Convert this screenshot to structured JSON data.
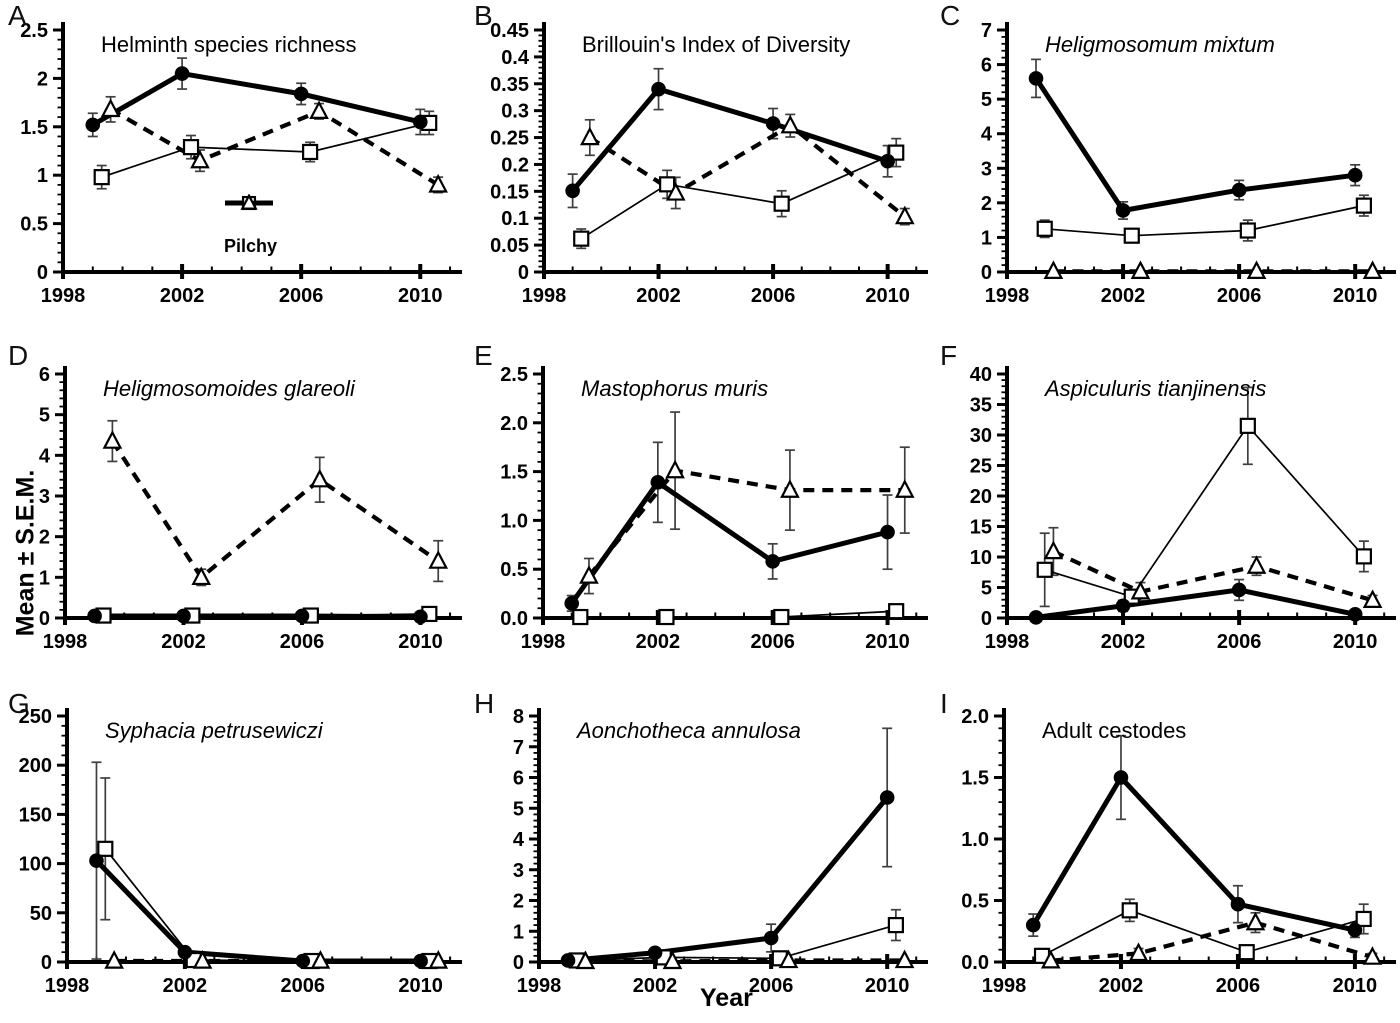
{
  "figure": {
    "xlabel": "Year",
    "ylabel": "Mean ± S.E.M.",
    "x_range": [
      1998,
      2011.2
    ],
    "x_major_ticks": [
      1998,
      2002,
      2006,
      2010
    ],
    "years": [
      1999,
      2002,
      2006,
      2010
    ],
    "colors": {
      "line": "#000000",
      "marker_fill": "#ffffff",
      "error_bar": "#3f3f3f",
      "background": "#ffffff"
    }
  },
  "legend": {
    "entries": [
      {
        "marker": "filled-circle",
        "line": "solid-thick",
        "label": ""
      },
      {
        "marker": "open-square",
        "line": "solid-thin",
        "label": ""
      },
      {
        "marker": "open-triangle",
        "line": "dashed-thick",
        "label": "Pilchy"
      }
    ]
  },
  "chart_data": [
    {
      "panel": "A",
      "type": "line",
      "title": "Helminth species richness",
      "title_italic": false,
      "ylim": 2.5,
      "y_major": 0.5,
      "y_minor": 0.1,
      "y_labels": [
        "0",
        "0.5",
        "1",
        "1.5",
        "2",
        "2.5"
      ],
      "series": [
        {
          "name": "filled-circle",
          "marker": "filled-circle",
          "line": "solid-thick",
          "x_offset": 0,
          "values": [
            1.52,
            2.05,
            1.84,
            1.55
          ],
          "errors": [
            0.12,
            0.16,
            0.11,
            0.13
          ]
        },
        {
          "name": "open-square",
          "marker": "open-square",
          "line": "solid-thin",
          "x_offset": 0.3,
          "values": [
            0.98,
            1.29,
            1.24,
            1.54
          ],
          "errors": [
            0.12,
            0.12,
            0.1,
            0.12
          ]
        },
        {
          "name": "pilchy-triangle",
          "marker": "open-triangle",
          "line": "dashed-thick",
          "x_offset": 0.6,
          "values": [
            1.68,
            1.15,
            1.66,
            0.9
          ],
          "errors": [
            0.13,
            0.11,
            0.08,
            0.08
          ]
        }
      ]
    },
    {
      "panel": "B",
      "type": "line",
      "title": "Brillouin's Index of Diversity",
      "title_italic": false,
      "ylim": 0.45,
      "y_major": 0.05,
      "y_minor": 0.01,
      "y_labels": [
        "0",
        "0.05",
        "0.1",
        "0.15",
        "0.2",
        "0.25",
        "0.3",
        "0.35",
        "0.4",
        "0.45"
      ],
      "series": [
        {
          "name": "filled-circle",
          "marker": "filled-circle",
          "line": "solid-thick",
          "x_offset": 0,
          "values": [
            0.151,
            0.34,
            0.276,
            0.206
          ],
          "errors": [
            0.031,
            0.038,
            0.028,
            0.029
          ]
        },
        {
          "name": "open-square",
          "marker": "open-square",
          "line": "solid-thin",
          "x_offset": 0.3,
          "values": [
            0.062,
            0.163,
            0.127,
            0.222
          ],
          "errors": [
            0.018,
            0.026,
            0.024,
            0.026
          ]
        },
        {
          "name": "pilchy-triangle",
          "marker": "open-triangle",
          "line": "dashed-thick",
          "x_offset": 0.6,
          "values": [
            0.25,
            0.147,
            0.272,
            0.103
          ],
          "errors": [
            0.033,
            0.029,
            0.021,
            0.015
          ]
        }
      ]
    },
    {
      "panel": "C",
      "type": "line",
      "title": "Heligmosomum mixtum",
      "title_italic": true,
      "ylim": 7,
      "y_major": 1,
      "y_minor": 0.2,
      "y_labels": [
        "0",
        "1",
        "2",
        "3",
        "4",
        "5",
        "6",
        "7"
      ],
      "series": [
        {
          "name": "filled-circle",
          "marker": "filled-circle",
          "line": "solid-thick",
          "x_offset": 0,
          "values": [
            5.6,
            1.78,
            2.37,
            2.8
          ],
          "errors": [
            0.55,
            0.25,
            0.28,
            0.3
          ]
        },
        {
          "name": "open-square",
          "marker": "open-square",
          "line": "solid-thin",
          "x_offset": 0.3,
          "values": [
            1.25,
            1.05,
            1.2,
            1.92
          ],
          "errors": [
            0.25,
            0.2,
            0.3,
            0.3
          ]
        },
        {
          "name": "pilchy-triangle",
          "marker": "open-triangle",
          "line": "dashed-thick",
          "x_offset": 0.6,
          "values": [
            0.02,
            0.02,
            0.02,
            0.02
          ],
          "errors": [
            0,
            0,
            0,
            0
          ]
        }
      ]
    },
    {
      "panel": "D",
      "type": "line",
      "title": "Heligmosomoides glareoli",
      "title_italic": true,
      "ylim": 6,
      "y_major": 1,
      "y_minor": 0.2,
      "y_labels": [
        "0",
        "1",
        "2",
        "3",
        "4",
        "5",
        "6"
      ],
      "series": [
        {
          "name": "filled-circle",
          "marker": "filled-circle",
          "line": "solid-thick",
          "x_offset": 0,
          "values": [
            0.05,
            0.05,
            0.05,
            0.03
          ],
          "errors": [
            0,
            0,
            0,
            0
          ]
        },
        {
          "name": "open-square",
          "marker": "open-square",
          "line": "solid-thin",
          "x_offset": 0.3,
          "values": [
            0.06,
            0.06,
            0.06,
            0.1
          ],
          "errors": [
            0,
            0,
            0,
            0
          ]
        },
        {
          "name": "pilchy-triangle",
          "marker": "open-triangle",
          "line": "dashed-thick",
          "x_offset": 0.6,
          "values": [
            4.35,
            1.0,
            3.4,
            1.4
          ],
          "errors": [
            0.5,
            0.2,
            0.55,
            0.5
          ]
        }
      ]
    },
    {
      "panel": "E",
      "type": "line",
      "title": "Mastophorus muris",
      "title_italic": true,
      "ylim": 2.5,
      "y_major": 0.5,
      "y_minor": 0.1,
      "y_labels": [
        "0.0",
        "0.5",
        "1.0",
        "1.5",
        "2.0",
        "2.5"
      ],
      "series": [
        {
          "name": "filled-circle",
          "marker": "filled-circle",
          "line": "solid-thick",
          "x_offset": 0,
          "values": [
            0.15,
            1.39,
            0.58,
            0.88
          ],
          "errors": [
            0.08,
            0.41,
            0.18,
            0.38
          ]
        },
        {
          "name": "open-square",
          "marker": "open-square",
          "line": "solid-thin",
          "x_offset": 0.3,
          "values": [
            0.01,
            0.01,
            0.01,
            0.07
          ],
          "errors": [
            0,
            0,
            0,
            0
          ]
        },
        {
          "name": "pilchy-triangle",
          "marker": "open-triangle",
          "line": "dashed-thick",
          "x_offset": 0.6,
          "values": [
            0.43,
            1.51,
            1.31,
            1.31
          ],
          "errors": [
            0.18,
            0.6,
            0.41,
            0.44
          ]
        }
      ]
    },
    {
      "panel": "F",
      "type": "line",
      "title": "Aspiculuris tianjinensis",
      "title_italic": true,
      "ylim": 40,
      "y_major": 5,
      "y_minor": 1,
      "y_labels": [
        "0",
        "5",
        "10",
        "15",
        "20",
        "25",
        "30",
        "35",
        "40"
      ],
      "series": [
        {
          "name": "filled-circle",
          "marker": "filled-circle",
          "line": "solid-thick",
          "x_offset": 0,
          "values": [
            0.1,
            2.0,
            4.6,
            0.6
          ],
          "errors": [
            0,
            0.9,
            1.7,
            0.4
          ]
        },
        {
          "name": "open-square",
          "marker": "open-square",
          "line": "solid-thin",
          "x_offset": 0.3,
          "values": [
            7.9,
            3.5,
            31.5,
            10.1
          ],
          "errors": [
            6.0,
            1.0,
            6.3,
            2.5
          ]
        },
        {
          "name": "pilchy-triangle",
          "marker": "open-triangle",
          "line": "dashed-thick",
          "x_offset": 0.6,
          "values": [
            10.9,
            4.3,
            8.5,
            2.9
          ],
          "errors": [
            3.9,
            1.5,
            1.5,
            0.8
          ]
        }
      ]
    },
    {
      "panel": "G",
      "type": "line",
      "title": "Syphacia petrusewiczi",
      "title_italic": true,
      "ylim": 250,
      "y_major": 50,
      "y_minor": 10,
      "y_labels": [
        "0",
        "50",
        "100",
        "150",
        "200",
        "250"
      ],
      "series": [
        {
          "name": "filled-circle",
          "marker": "filled-circle",
          "line": "solid-thick",
          "x_offset": 0,
          "values": [
            103,
            10,
            1,
            1
          ],
          "errors": [
            100,
            3,
            0,
            0
          ]
        },
        {
          "name": "open-square",
          "marker": "open-square",
          "line": "solid-thin",
          "x_offset": 0.3,
          "values": [
            115,
            2,
            1,
            1
          ],
          "errors": [
            72,
            0,
            0,
            0
          ]
        },
        {
          "name": "pilchy-triangle",
          "marker": "open-triangle",
          "line": "dashed-thick",
          "x_offset": 0.6,
          "values": [
            1,
            1,
            1,
            1
          ],
          "errors": [
            0,
            0,
            0,
            0
          ]
        }
      ]
    },
    {
      "panel": "H",
      "type": "line",
      "title": "Aonchotheca annulosa",
      "title_italic": true,
      "ylim": 8,
      "y_major": 1,
      "y_minor": 0.2,
      "y_labels": [
        "0",
        "1",
        "2",
        "3",
        "4",
        "5",
        "6",
        "7",
        "8"
      ],
      "series": [
        {
          "name": "filled-circle",
          "marker": "filled-circle",
          "line": "solid-thick",
          "x_offset": 0,
          "values": [
            0.05,
            0.3,
            0.78,
            5.35
          ],
          "errors": [
            0,
            0.12,
            0.45,
            2.25
          ]
        },
        {
          "name": "open-square",
          "marker": "open-square",
          "line": "solid-thin",
          "x_offset": 0.3,
          "values": [
            0.05,
            0.15,
            0.12,
            1.2
          ],
          "errors": [
            0,
            0,
            0.12,
            0.5
          ]
        },
        {
          "name": "pilchy-triangle",
          "marker": "open-triangle",
          "line": "dashed-thick",
          "x_offset": 0.6,
          "values": [
            0.02,
            0.02,
            0.05,
            0.05
          ],
          "errors": [
            0,
            0,
            0,
            0
          ]
        }
      ]
    },
    {
      "panel": "I",
      "type": "line",
      "title": "Adult cestodes",
      "title_italic": false,
      "ylim": 2.0,
      "y_major": 0.5,
      "y_minor": 0.1,
      "y_labels": [
        "0.0",
        "0.5",
        "1.0",
        "1.5",
        "2.0"
      ],
      "series": [
        {
          "name": "filled-circle",
          "marker": "filled-circle",
          "line": "solid-thick",
          "x_offset": 0,
          "values": [
            0.3,
            1.5,
            0.47,
            0.26
          ],
          "errors": [
            0.09,
            0.34,
            0.15,
            0.06
          ]
        },
        {
          "name": "open-square",
          "marker": "open-square",
          "line": "solid-thin",
          "x_offset": 0.3,
          "values": [
            0.05,
            0.42,
            0.08,
            0.35
          ],
          "errors": [
            0.03,
            0.09,
            0.02,
            0.12
          ]
        },
        {
          "name": "pilchy-triangle",
          "marker": "open-triangle",
          "line": "dashed-thick",
          "x_offset": 0.6,
          "values": [
            0.01,
            0.07,
            0.32,
            0.04
          ],
          "errors": [
            0.0,
            0.04,
            0.08,
            0.03
          ]
        }
      ]
    }
  ]
}
